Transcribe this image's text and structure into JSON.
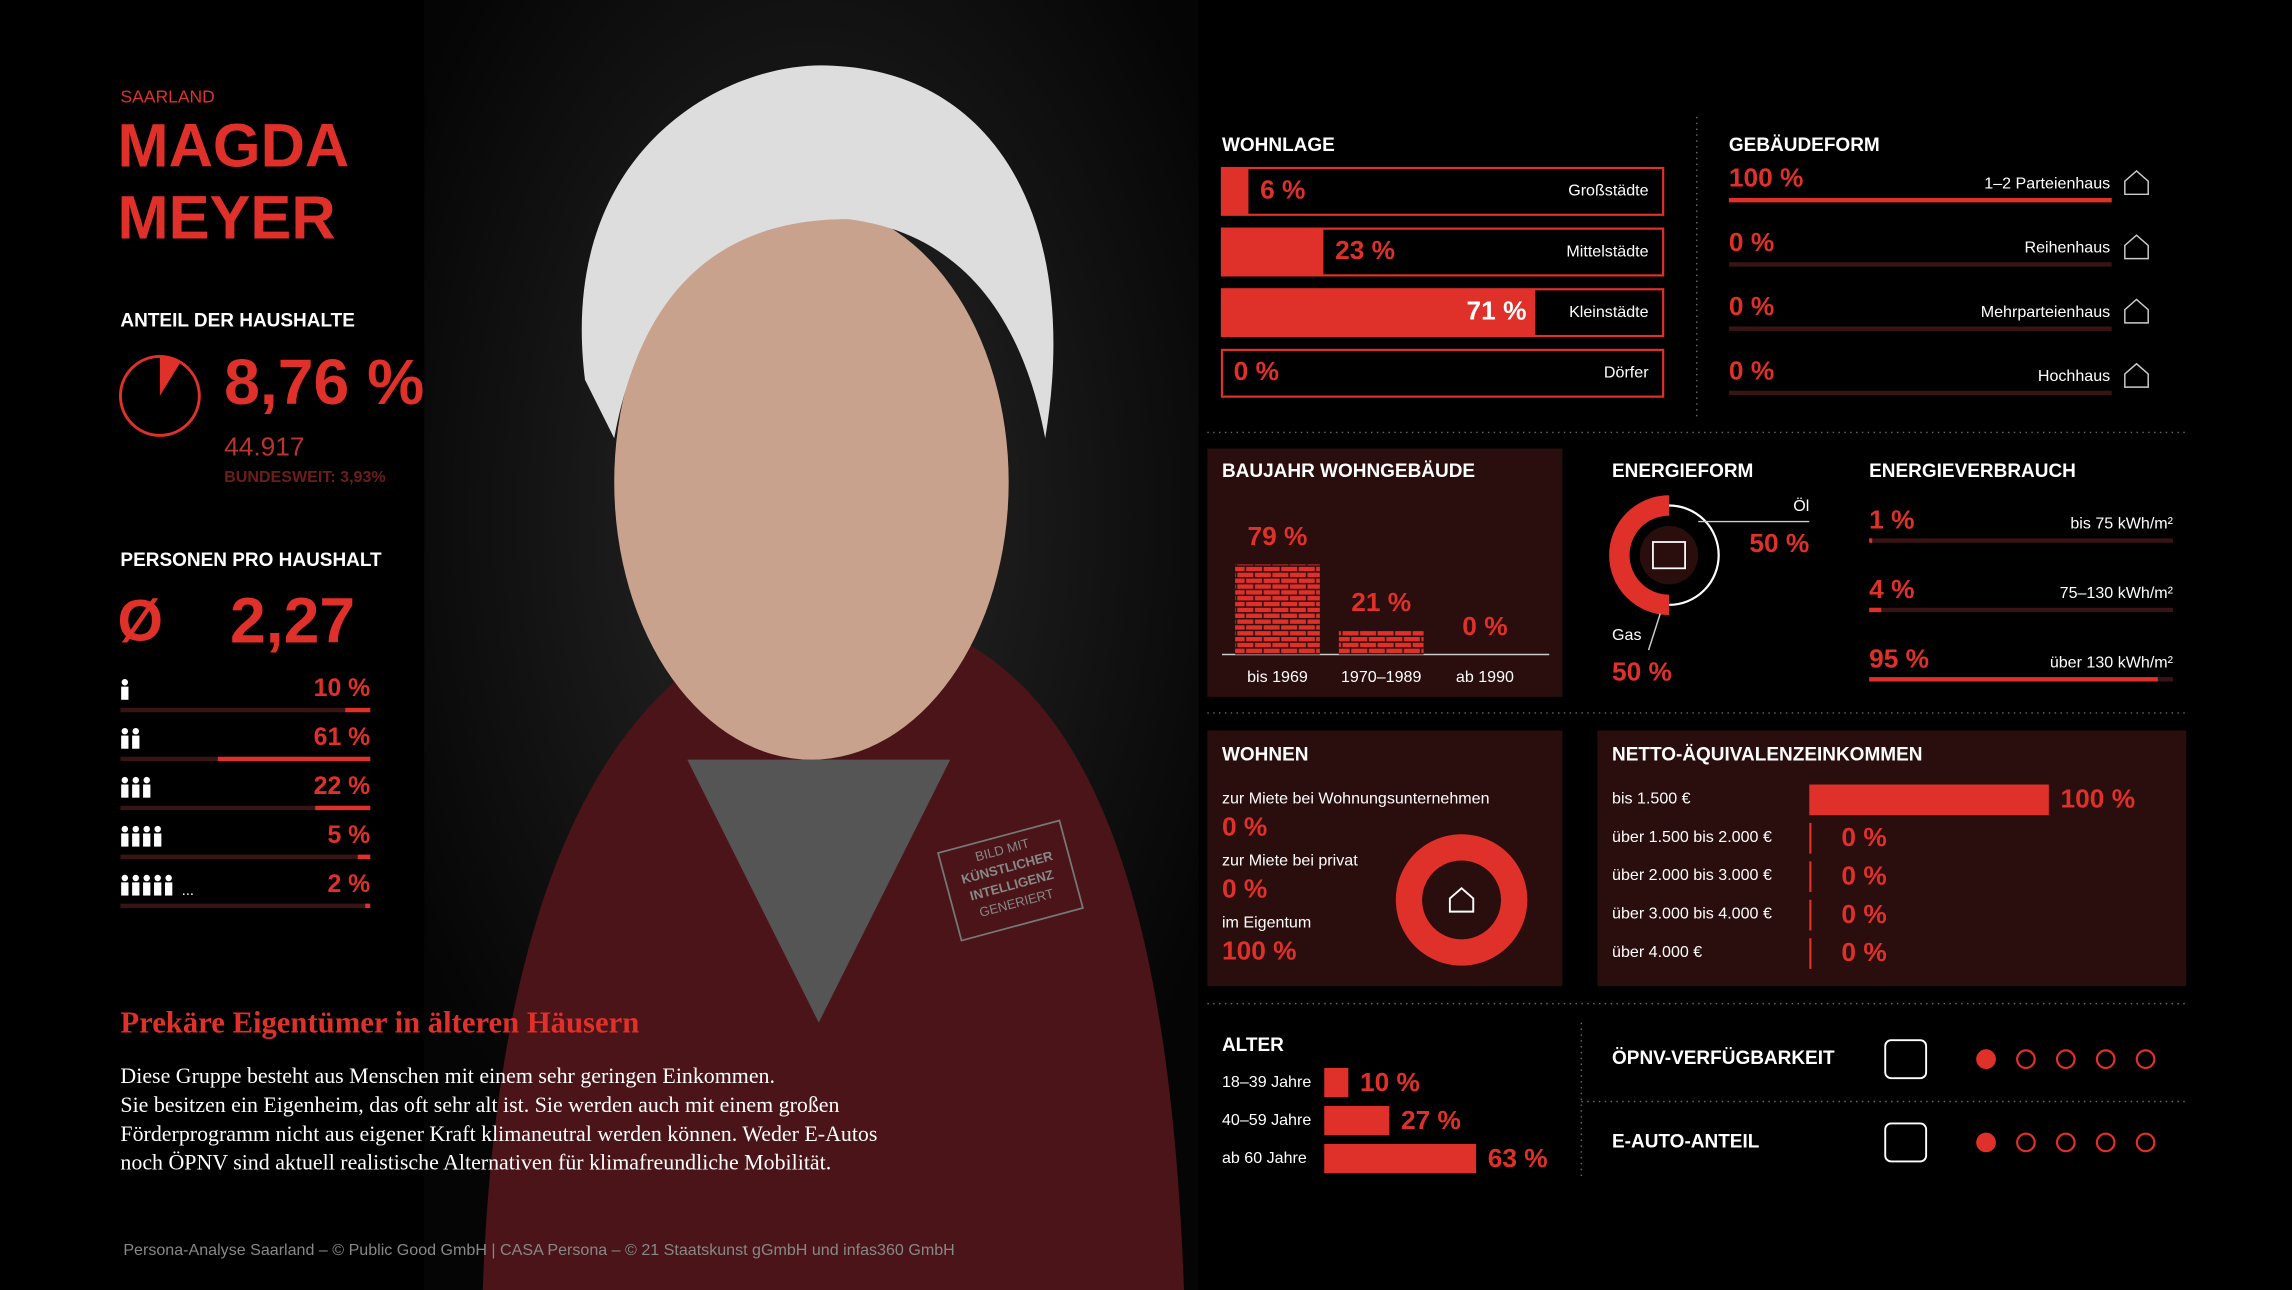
{
  "header": {
    "region": "SAARLAND",
    "name_line1": "MAGDA",
    "name_line2": "MEYER"
  },
  "households": {
    "title": "ANTEIL DER HAUSHALTE",
    "value": 8.76,
    "value_label": "8,76 %",
    "count": "44.917",
    "national": "BUNDESWEIT: 3,93%"
  },
  "persons": {
    "title": "PERSONEN PRO HAUSHALT",
    "symbol": "Ø",
    "average": "2,27",
    "more": "...",
    "rows": [
      {
        "value": 10,
        "label": "10 %"
      },
      {
        "value": 61,
        "label": "61 %"
      },
      {
        "value": 22,
        "label": "22 %"
      },
      {
        "value": 5,
        "label": "5 %"
      },
      {
        "value": 2,
        "label": "2 %"
      }
    ]
  },
  "badge": [
    "BILD MIT",
    "KÜNSTLICHER",
    "INTELLIGENZ",
    "GENERIERT"
  ],
  "article": {
    "title": "Prekäre Eigentümer in älteren Häusern",
    "lines": [
      "Diese Gruppe besteht aus Menschen mit einem sehr geringen Einkommen.",
      "Sie besitzen ein Eigenheim, das oft sehr alt ist. Sie werden auch mit einem großen",
      "Förderprogramm nicht aus eigener Kraft klimaneutral werden können. Weder E-Autos",
      "noch ÖPNV sind aktuell realistische Alternativen für klimafreundliche Mobilität."
    ]
  },
  "footer": "Persona-Analyse Saarland – © Public Good GmbH | CASA Persona – © 21 Staatskunst gGmbH und infas360 GmbH",
  "wohnlage": {
    "title": "WOHNLAGE",
    "items": [
      {
        "name": "Großstädte",
        "value": 6,
        "label": "6 %"
      },
      {
        "name": "Mittelstädte",
        "value": 23,
        "label": "23 %"
      },
      {
        "name": "Kleinstädte",
        "value": 71,
        "label": "71 %"
      },
      {
        "name": "Dörfer",
        "value": 0,
        "label": "0 %"
      }
    ]
  },
  "gebaeudeform": {
    "title": "GEBÄUDEFORM",
    "items": [
      {
        "name": "1–2 Parteienhaus",
        "value": 100,
        "label": "100 %"
      },
      {
        "name": "Reihenhaus",
        "value": 0,
        "label": "0 %"
      },
      {
        "name": "Mehrparteienhaus",
        "value": 0,
        "label": "0 %"
      },
      {
        "name": "Hochhaus",
        "value": 0,
        "label": "0 %"
      }
    ]
  },
  "baujahr": {
    "title": "BAUJAHR WOHNGEBÄUDE",
    "items": [
      {
        "name": "bis 1969",
        "value": 79,
        "label": "79 %"
      },
      {
        "name": "1970–1989",
        "value": 21,
        "label": "21 %"
      },
      {
        "name": "ab 1990",
        "value": 0,
        "label": "0 %"
      }
    ]
  },
  "energieform": {
    "title": "ENERGIEFORM",
    "items": [
      {
        "name": "Öl",
        "value": 50,
        "label": "50 %"
      },
      {
        "name": "Gas",
        "value": 50,
        "label": "50 %"
      }
    ]
  },
  "energieverbrauch": {
    "title": "ENERGIEVERBRAUCH",
    "items": [
      {
        "name": "bis 75 kWh/m²",
        "value": 1,
        "label": "1 %"
      },
      {
        "name": "75–130 kWh/m²",
        "value": 4,
        "label": "4 %"
      },
      {
        "name": "über 130 kWh/m²",
        "value": 95,
        "label": "95 %"
      }
    ]
  },
  "wohnen": {
    "title": "WOHNEN",
    "items": [
      {
        "name": "zur Miete bei Wohnungsunternehmen",
        "value": 0,
        "label": "0 %"
      },
      {
        "name": "zur Miete bei privat",
        "value": 0,
        "label": "0 %"
      },
      {
        "name": "im Eigentum",
        "value": 100,
        "label": "100 %"
      }
    ]
  },
  "einkommen": {
    "title": "NETTO-ÄQUIVALENZEINKOMMEN",
    "items": [
      {
        "name": "bis 1.500 €",
        "value": 100,
        "label": "100 %"
      },
      {
        "name": "über 1.500 bis 2.000 €",
        "value": 0,
        "label": "0 %"
      },
      {
        "name": "über 2.000 bis 3.000 €",
        "value": 0,
        "label": "0 %"
      },
      {
        "name": "über 3.000 bis 4.000 €",
        "value": 0,
        "label": "0 %"
      },
      {
        "name": "über 4.000 €",
        "value": 0,
        "label": "0 %"
      }
    ]
  },
  "alter": {
    "title": "ALTER",
    "items": [
      {
        "name": "18–39 Jahre",
        "value": 10,
        "label": "10 %"
      },
      {
        "name": "40–59 Jahre",
        "value": 27,
        "label": "27 %"
      },
      {
        "name": "ab 60 Jahre",
        "value": 63,
        "label": "63 %"
      }
    ]
  },
  "mobilitaet": [
    {
      "name": "ÖPNV-VERFÜGBARKEIT",
      "rating": 1,
      "scale": 5
    },
    {
      "name": "E-AUTO-ANTEIL",
      "rating": 1,
      "scale": 5
    }
  ]
}
